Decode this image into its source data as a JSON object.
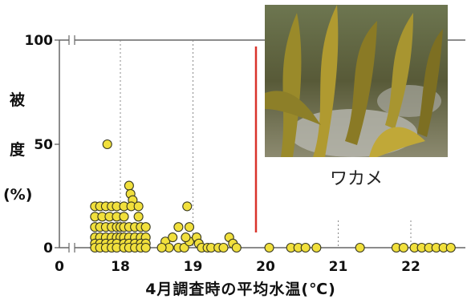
{
  "chart_data": {
    "type": "scatter",
    "xlabel": "4月調査時の平均水温(℃)",
    "ylabel_chars": [
      "被",
      "度",
      "(%)"
    ],
    "xlim": [
      0,
      22.9
    ],
    "x_axis_break_after": 0,
    "x_visible_range": [
      17.3,
      22.9
    ],
    "ylim": [
      0,
      100
    ],
    "y_axis_break": [
      50,
      100
    ],
    "x_ticks": [
      0,
      18,
      19,
      20,
      21,
      22
    ],
    "y_ticks": [
      0,
      50,
      100
    ],
    "vertical_gridlines": [
      18,
      19,
      21,
      22
    ],
    "threshold_line": {
      "x": 20.0,
      "color": "#d9342b"
    },
    "marker_color": "#f1e03c",
    "points": [
      [
        17.65,
        20
      ],
      [
        17.72,
        20
      ],
      [
        17.8,
        20
      ],
      [
        17.88,
        20
      ],
      [
        17.95,
        20
      ],
      [
        17.65,
        15
      ],
      [
        17.75,
        15
      ],
      [
        17.85,
        15
      ],
      [
        17.95,
        15
      ],
      [
        17.65,
        10
      ],
      [
        17.72,
        10
      ],
      [
        17.8,
        10
      ],
      [
        17.88,
        10
      ],
      [
        17.95,
        10
      ],
      [
        18.0,
        10
      ],
      [
        18.05,
        10
      ],
      [
        18.12,
        10
      ],
      [
        18.2,
        10
      ],
      [
        18.28,
        10
      ],
      [
        18.35,
        10
      ],
      [
        17.65,
        5
      ],
      [
        17.72,
        5
      ],
      [
        17.8,
        5
      ],
      [
        17.88,
        5
      ],
      [
        17.95,
        5
      ],
      [
        18.0,
        5
      ],
      [
        18.05,
        5
      ],
      [
        18.12,
        5
      ],
      [
        18.2,
        5
      ],
      [
        18.28,
        5
      ],
      [
        18.35,
        5
      ],
      [
        17.65,
        2
      ],
      [
        17.72,
        2
      ],
      [
        17.8,
        2
      ],
      [
        17.88,
        2
      ],
      [
        17.95,
        2
      ],
      [
        18.05,
        2
      ],
      [
        18.12,
        2
      ],
      [
        18.2,
        2
      ],
      [
        18.28,
        2
      ],
      [
        18.35,
        2
      ],
      [
        17.65,
        0
      ],
      [
        17.72,
        0
      ],
      [
        17.8,
        0
      ],
      [
        17.88,
        0
      ],
      [
        17.95,
        0
      ],
      [
        18.05,
        0
      ],
      [
        18.12,
        0
      ],
      [
        18.2,
        0
      ],
      [
        18.28,
        0
      ],
      [
        18.35,
        0
      ],
      [
        17.82,
        50
      ],
      [
        18.12,
        30
      ],
      [
        18.14,
        26
      ],
      [
        18.17,
        23
      ],
      [
        18.05,
        20
      ],
      [
        18.15,
        20
      ],
      [
        18.25,
        20
      ],
      [
        18.05,
        15
      ],
      [
        18.25,
        15
      ],
      [
        18.62,
        3
      ],
      [
        18.72,
        5
      ],
      [
        18.8,
        0
      ],
      [
        18.88,
        0
      ],
      [
        18.95,
        3
      ],
      [
        18.67,
        0
      ],
      [
        18.57,
        0
      ],
      [
        18.8,
        10
      ],
      [
        18.9,
        5
      ],
      [
        18.92,
        20
      ],
      [
        18.95,
        10
      ],
      [
        19.05,
        5
      ],
      [
        19.08,
        2
      ],
      [
        19.12,
        0
      ],
      [
        19.2,
        0
      ],
      [
        19.25,
        0
      ],
      [
        19.35,
        0
      ],
      [
        19.42,
        0
      ],
      [
        19.5,
        5
      ],
      [
        19.55,
        2
      ],
      [
        19.6,
        0
      ],
      [
        20.05,
        0
      ],
      [
        20.35,
        0
      ],
      [
        20.45,
        0
      ],
      [
        20.55,
        0
      ],
      [
        20.7,
        0
      ],
      [
        21.3,
        0
      ],
      [
        21.8,
        0
      ],
      [
        21.9,
        0
      ],
      [
        22.05,
        0
      ],
      [
        22.15,
        0
      ],
      [
        22.25,
        0
      ],
      [
        22.35,
        0
      ],
      [
        22.45,
        0
      ],
      [
        22.55,
        0
      ]
    ]
  },
  "labels": {
    "y_tick_100": "100",
    "y_tick_50": "50",
    "y_tick_0": "0",
    "x_tick_0": "0",
    "x_tick_18": "18",
    "x_tick_19": "19",
    "x_tick_20": "20",
    "x_tick_21": "21",
    "x_tick_22": "22",
    "ylabel_1": "被",
    "ylabel_2": "度",
    "ylabel_3": "(%)",
    "xlabel": "4月調査時の平均水温(℃)",
    "photo_caption": "ワカメ"
  }
}
